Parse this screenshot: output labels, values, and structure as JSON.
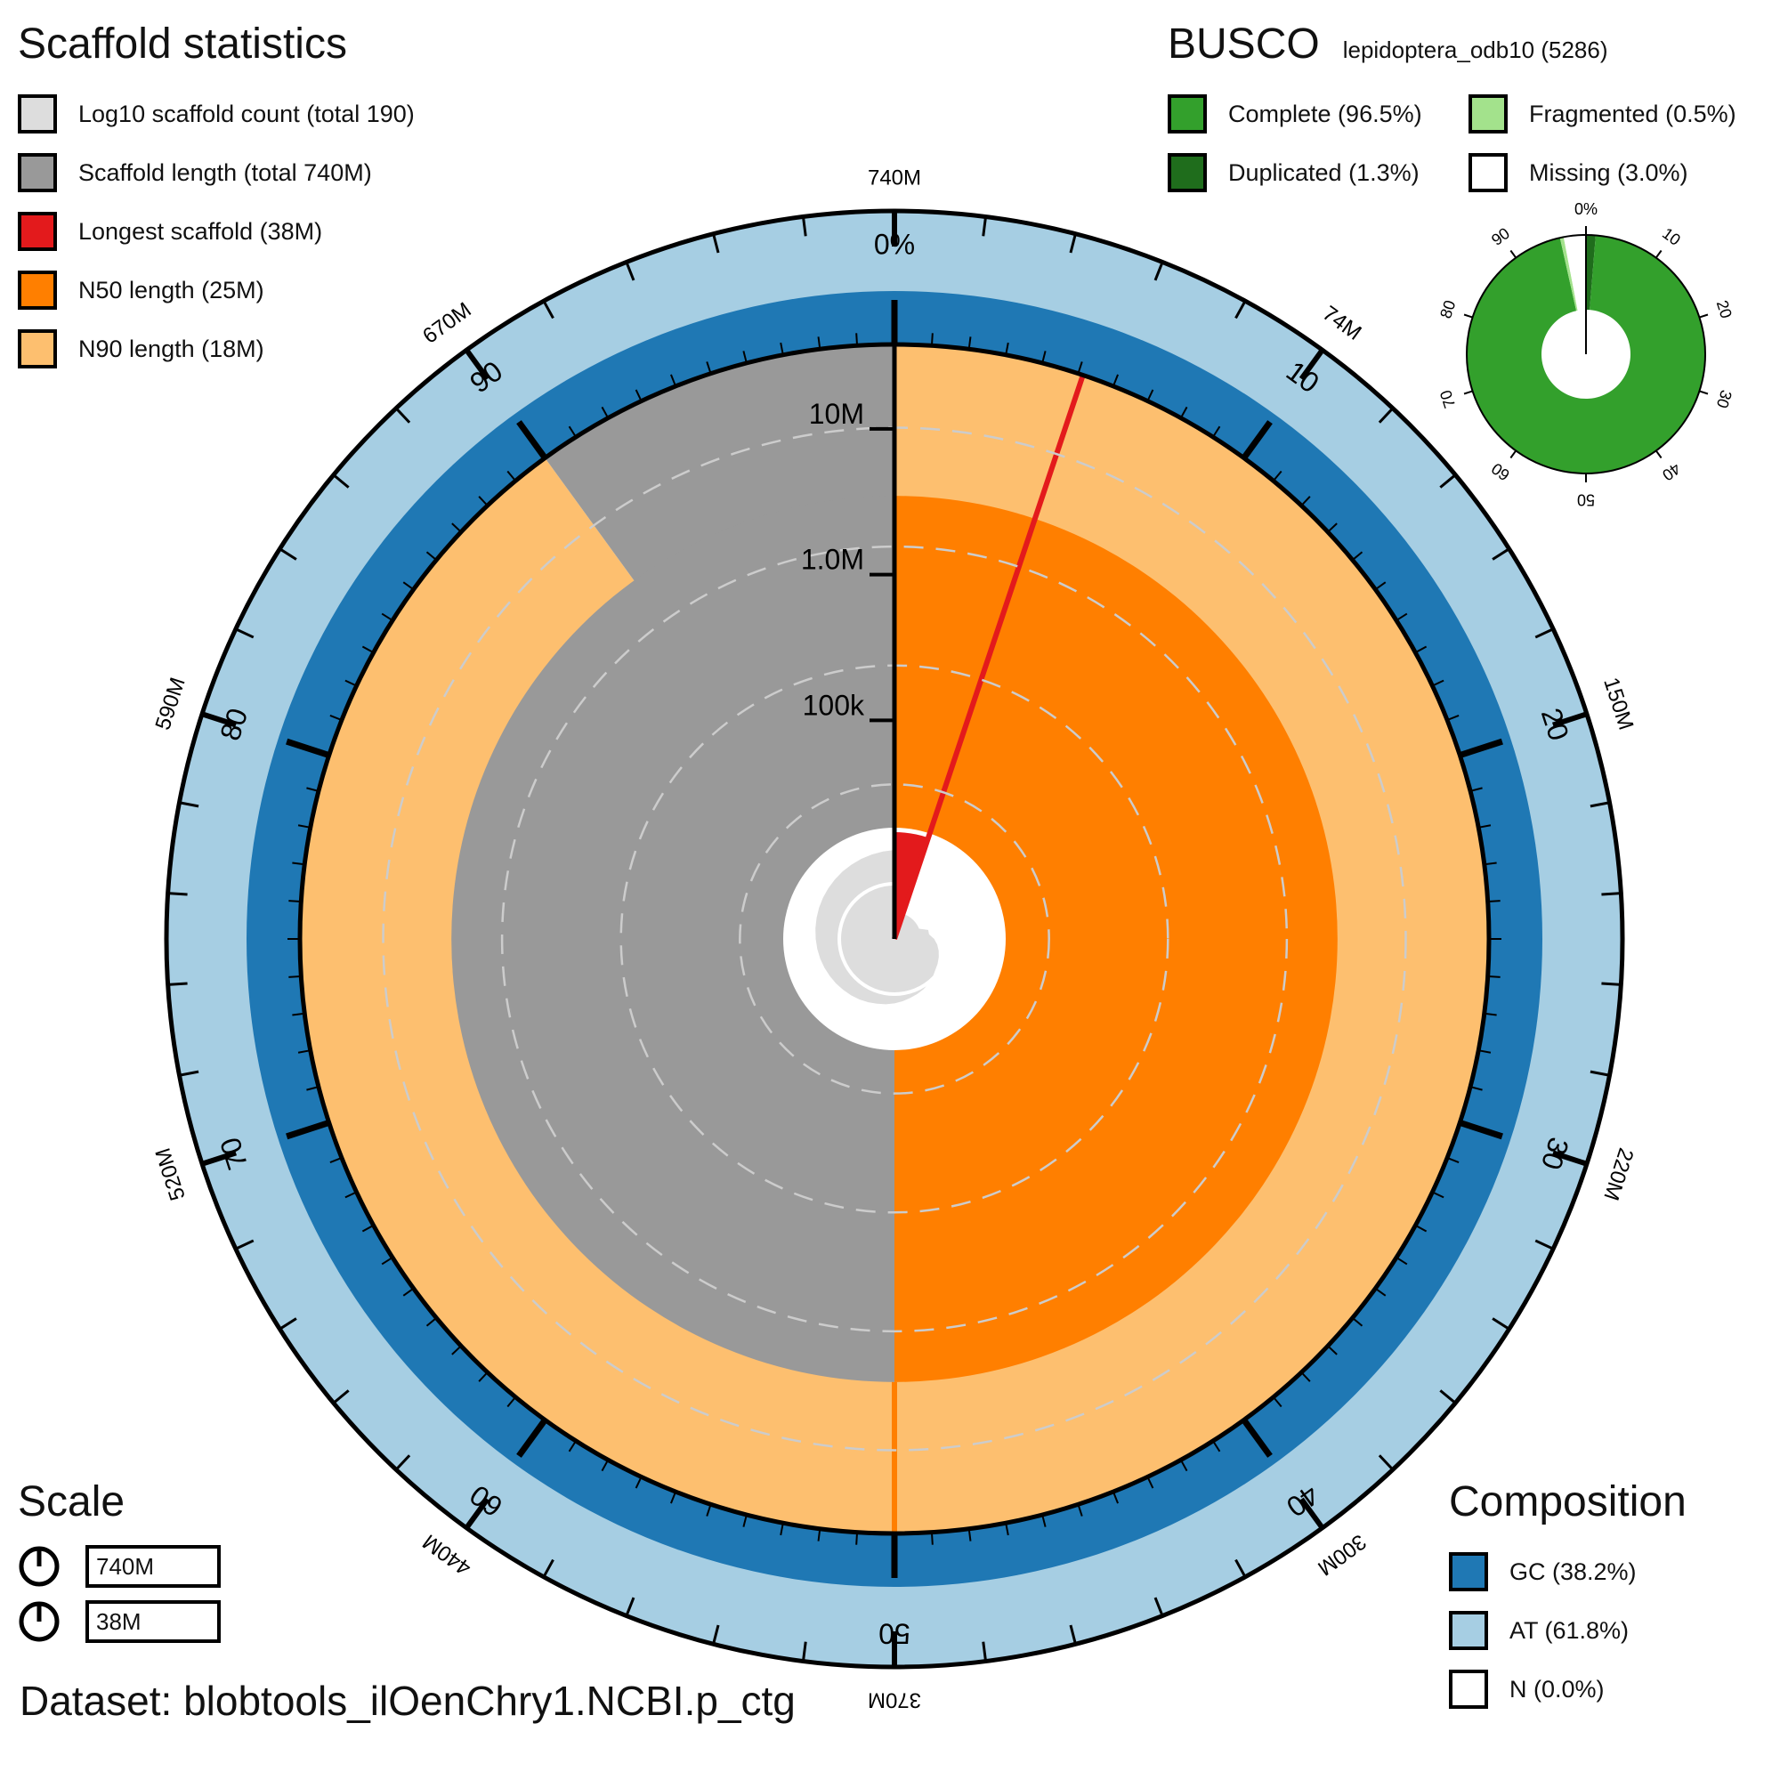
{
  "scaffold_panel": {
    "title": "Scaffold statistics",
    "items": [
      {
        "label": "Log10 scaffold count (total 190)",
        "color": "#dddddd"
      },
      {
        "label": "Scaffold length (total 740M)",
        "color": "#999999"
      },
      {
        "label": "Longest scaffold (38M)",
        "color": "#e31a1c"
      },
      {
        "label": "N50 length (25M)",
        "color": "#ff7f00"
      },
      {
        "label": "N90 length (18M)",
        "color": "#fdbf6f"
      }
    ]
  },
  "busco_panel": {
    "title": "BUSCO",
    "lineage": "lepidoptera_odb10 (5286)",
    "items": [
      {
        "label": "Complete (96.5%)",
        "color": "#33a02c"
      },
      {
        "label": "Fragmented (0.5%)",
        "color": "#a3e28c"
      },
      {
        "label": "Duplicated (1.3%)",
        "color": "#1f6d1c"
      },
      {
        "label": "Missing (3.0%)",
        "color": "#ffffff"
      }
    ]
  },
  "scale_panel": {
    "title": "Scale",
    "items": [
      "740M",
      "38M"
    ]
  },
  "composition_panel": {
    "title": "Composition",
    "items": [
      {
        "label": "GC (38.2%)",
        "color": "#1f78b4"
      },
      {
        "label": "AT (61.8%)",
        "color": "#a6cee3"
      },
      {
        "label": "N (0.0%)",
        "color": "#ffffff"
      }
    ]
  },
  "dataset_label": "Dataset: blobtools_ilOenChry1.NCBI.p_ctg",
  "chart_data": {
    "type": "snail",
    "assembly": {
      "total_length": 740000000,
      "scaffold_count": 190,
      "longest_scaffold": 38000000,
      "n50": 25000000,
      "n90": 18000000,
      "gc_percent": 38.2,
      "at_percent": 61.8,
      "n_percent": 0.0
    },
    "percent_ticks": [
      "0%",
      "10",
      "20",
      "30",
      "40",
      "50",
      "60",
      "70",
      "80",
      "90"
    ],
    "length_ticks": [
      {
        "label": "740M",
        "value": 0
      },
      {
        "label": "74M",
        "value": 74000000
      },
      {
        "label": "150M",
        "value": 150000000
      },
      {
        "label": "220M",
        "value": 220000000
      },
      {
        "label": "300M",
        "value": 300000000
      },
      {
        "label": "370M",
        "value": 370000000
      },
      {
        "label": "440M",
        "value": 440000000
      },
      {
        "label": "520M",
        "value": 520000000
      },
      {
        "label": "590M",
        "value": 590000000
      },
      {
        "label": "670M",
        "value": 670000000
      }
    ],
    "radial_ticks": [
      "100k",
      "1.0M",
      "10M"
    ],
    "scaffold_length_profile": [
      {
        "percent": 0,
        "length": 38000000
      },
      {
        "percent": 11,
        "length": 33000000
      },
      {
        "percent": 18,
        "length": 30000000
      },
      {
        "percent": 26,
        "length": 28000000
      },
      {
        "percent": 33,
        "length": 26500000
      },
      {
        "percent": 42,
        "length": 25000000
      },
      {
        "percent": 50,
        "length": 24000000
      },
      {
        "percent": 56,
        "length": 22500000
      },
      {
        "percent": 63,
        "length": 21500000
      },
      {
        "percent": 70,
        "length": 20000000
      },
      {
        "percent": 78,
        "length": 19000000
      },
      {
        "percent": 85,
        "length": 18000000
      },
      {
        "percent": 90,
        "length": 17000000
      },
      {
        "percent": 91,
        "length": 9000000
      },
      {
        "percent": 93,
        "length": 5000000
      },
      {
        "percent": 96,
        "length": 1500000
      },
      {
        "percent": 98,
        "length": 300000
      },
      {
        "percent": 100,
        "length": 50000
      }
    ],
    "busco": {
      "lineage": "lepidoptera_odb10",
      "total": 5286,
      "complete": 96.5,
      "duplicated": 1.3,
      "fragmented": 0.5,
      "missing": 3.0,
      "ticks": [
        "0%",
        "10",
        "20",
        "30",
        "40",
        "50",
        "60",
        "70",
        "80",
        "90"
      ]
    }
  }
}
